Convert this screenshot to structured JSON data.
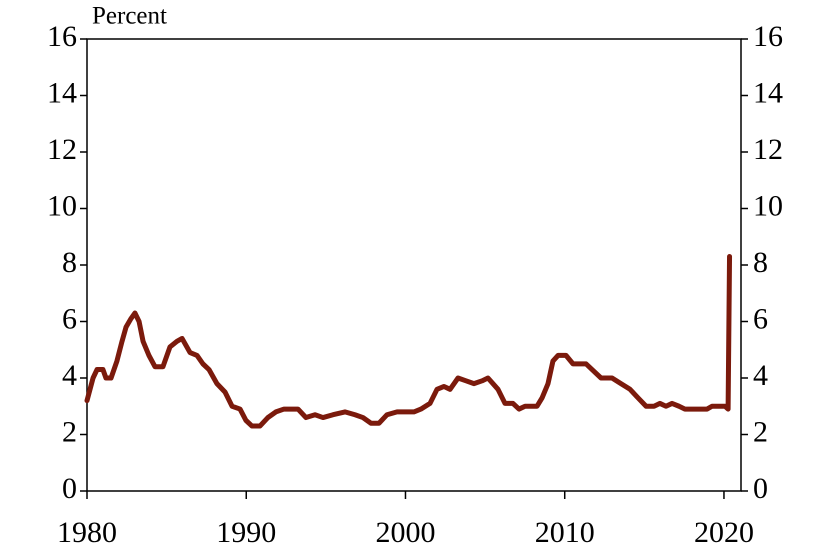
{
  "chart_data": {
    "type": "line",
    "title": "Percent",
    "x": [
      1980.0,
      1980.38,
      1980.63,
      1981.0,
      1981.19,
      1981.51,
      1981.88,
      1982.2,
      1982.45,
      1982.76,
      1983.01,
      1983.27,
      1983.52,
      1983.89,
      1984.27,
      1984.77,
      1985.21,
      1985.65,
      1985.97,
      1986.47,
      1986.91,
      1987.28,
      1987.66,
      1988.16,
      1988.67,
      1989.11,
      1989.61,
      1989.98,
      1990.36,
      1990.86,
      1991.36,
      1991.86,
      1992.37,
      1993.25,
      1993.75,
      1994.32,
      1994.82,
      1995.45,
      1996.2,
      1996.83,
      1997.33,
      1997.83,
      1998.34,
      1998.84,
      1999.47,
      2000.53,
      2000.97,
      2001.54,
      2001.98,
      2002.42,
      2002.8,
      2003.3,
      2003.8,
      2004.3,
      2004.81,
      2005.18,
      2005.81,
      2006.25,
      2006.75,
      2007.13,
      2007.51,
      2008.26,
      2008.58,
      2008.95,
      2009.26,
      2009.58,
      2010.08,
      2010.52,
      2011.34,
      2011.9,
      2012.28,
      2012.97,
      2013.53,
      2014.1,
      2014.6,
      2015.11,
      2015.61,
      2015.98,
      2016.36,
      2016.74,
      2017.18,
      2017.55,
      2018.94,
      2019.25,
      2019.63,
      2020.07,
      2020.26,
      2020.35
    ],
    "series": [
      {
        "color": "#7b1a0c",
        "values": [
          3.2,
          4.0,
          4.3,
          4.3,
          4.0,
          4.0,
          4.6,
          5.3,
          5.8,
          6.1,
          6.3,
          6.0,
          5.3,
          4.8,
          4.4,
          4.4,
          5.1,
          5.3,
          5.4,
          4.9,
          4.8,
          4.5,
          4.3,
          3.8,
          3.5,
          3.0,
          2.9,
          2.5,
          2.3,
          2.3,
          2.6,
          2.8,
          2.9,
          2.9,
          2.6,
          2.7,
          2.6,
          2.7,
          2.8,
          2.7,
          2.6,
          2.4,
          2.4,
          2.7,
          2.8,
          2.8,
          2.9,
          3.1,
          3.6,
          3.7,
          3.6,
          4.0,
          3.9,
          3.8,
          3.9,
          4.0,
          3.6,
          3.1,
          3.1,
          2.9,
          3.0,
          3.0,
          3.3,
          3.8,
          4.6,
          4.8,
          4.8,
          4.5,
          4.5,
          4.2,
          4.0,
          4.0,
          3.8,
          3.6,
          3.3,
          3.0,
          3.0,
          3.1,
          3.0,
          3.1,
          3.0,
          2.9,
          2.9,
          3.0,
          3.0,
          3.0,
          2.9,
          8.3
        ]
      }
    ],
    "xlim": [
      1980,
      2021.07
    ],
    "xticks": [
      1980,
      1990,
      2000,
      2010,
      2020
    ],
    "ylim": [
      0,
      16
    ],
    "yticks": [
      0,
      2,
      4,
      6,
      8,
      10,
      12,
      14,
      16
    ],
    "y2lim": [
      0,
      16
    ],
    "y2ticks": [
      0,
      2,
      4,
      6,
      8,
      10,
      12,
      14,
      16
    ]
  }
}
